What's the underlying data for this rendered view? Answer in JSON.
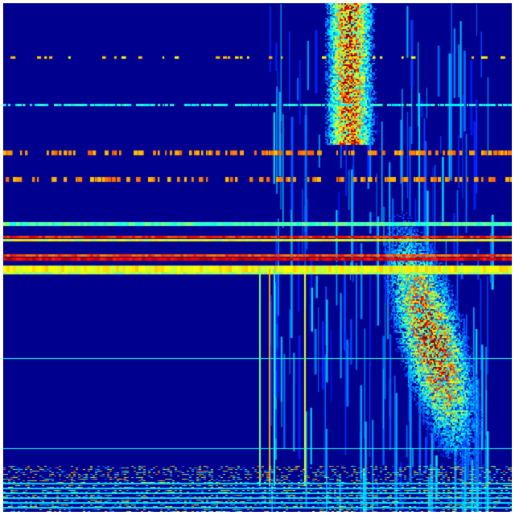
{
  "figure": {
    "type": "heatmap",
    "colormap": "jet",
    "colors": {
      "background": "#00008f",
      "low": "#0000ff",
      "mid_low": "#00bfff",
      "mid": "#7fff7f",
      "mid_high": "#ffff00",
      "high": "#ff4000",
      "max": "#800000"
    }
  }
}
